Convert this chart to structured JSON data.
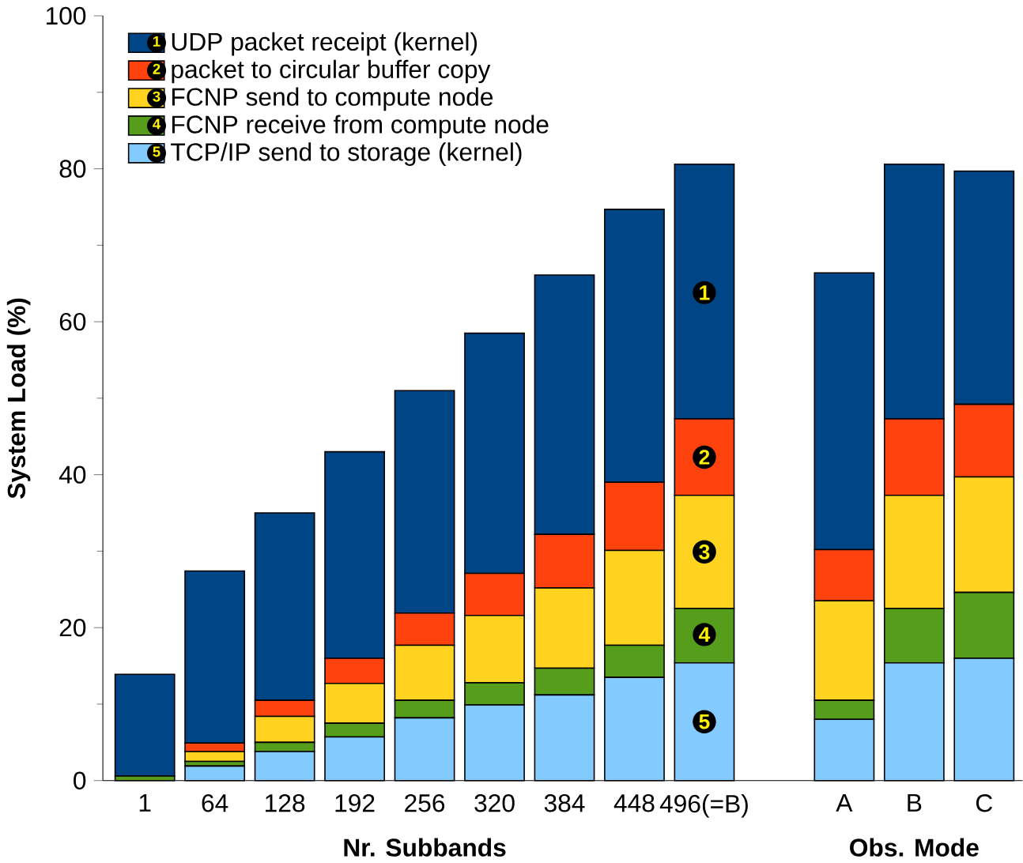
{
  "chart_data": {
    "type": "bar",
    "stacked": true,
    "xlabel": "Nr. Subbands",
    "ylabel": "System Load (%)",
    "categories": [
      "1",
      "64",
      "128",
      "192",
      "256",
      "320",
      "384",
      "448",
      "496(=B)",
      null,
      "A",
      "B",
      "C"
    ],
    "series": [
      {
        "name": "TCP/IP send to storage (kernel)",
        "color": "#83caff",
        "values": [
          null,
          1.9,
          3.8,
          5.7,
          8.2,
          9.9,
          11.2,
          13.5,
          15.4,
          null,
          8.0,
          15.4,
          16.0
        ]
      },
      {
        "name": "FCNP receive from compute node",
        "color": "#579d1c",
        "values": [
          0.6,
          0.6,
          1.2,
          1.8,
          2.3,
          2.9,
          3.5,
          4.2,
          7.1,
          null,
          2.5,
          7.1,
          8.6
        ]
      },
      {
        "name": "FCNP send to compute node",
        "color": "#ffd320",
        "values": [
          0,
          1.3,
          3.4,
          5.2,
          7.2,
          8.8,
          10.5,
          12.4,
          14.8,
          null,
          13.0,
          14.8,
          15.1
        ]
      },
      {
        "name": "packet to circular buffer copy",
        "color": "#ff420e",
        "values": [
          0,
          1.1,
          2.1,
          3.3,
          4.2,
          5.5,
          7.0,
          8.9,
          10.0,
          null,
          6.7,
          10.0,
          9.5
        ]
      },
      {
        "name": "UDP packet receipt (kernel)",
        "color": "#004586",
        "values": [
          13.3,
          22.5,
          24.5,
          27.0,
          29.1,
          31.4,
          33.9,
          35.7,
          33.3,
          null,
          36.2,
          33.3,
          30.5
        ]
      }
    ],
    "ylim": [
      0,
      100
    ],
    "yticks": [
      0,
      20,
      40,
      60,
      80,
      100
    ],
    "legend": "top left",
    "annotations": [
      "Obs. Mode",
      {
        "text": "1",
        "x": "496(=B)",
        "y": 63.8
      },
      {
        "text": "2",
        "x": "496(=B)",
        "y": 42.3
      },
      {
        "text": "3",
        "x": "496(=B)",
        "y": 29.9
      },
      {
        "text": "4",
        "x": "496(=B)",
        "y": 19.1
      },
      {
        "text": "5",
        "x": "496(=B)",
        "y": 7.7
      }
    ]
  }
}
